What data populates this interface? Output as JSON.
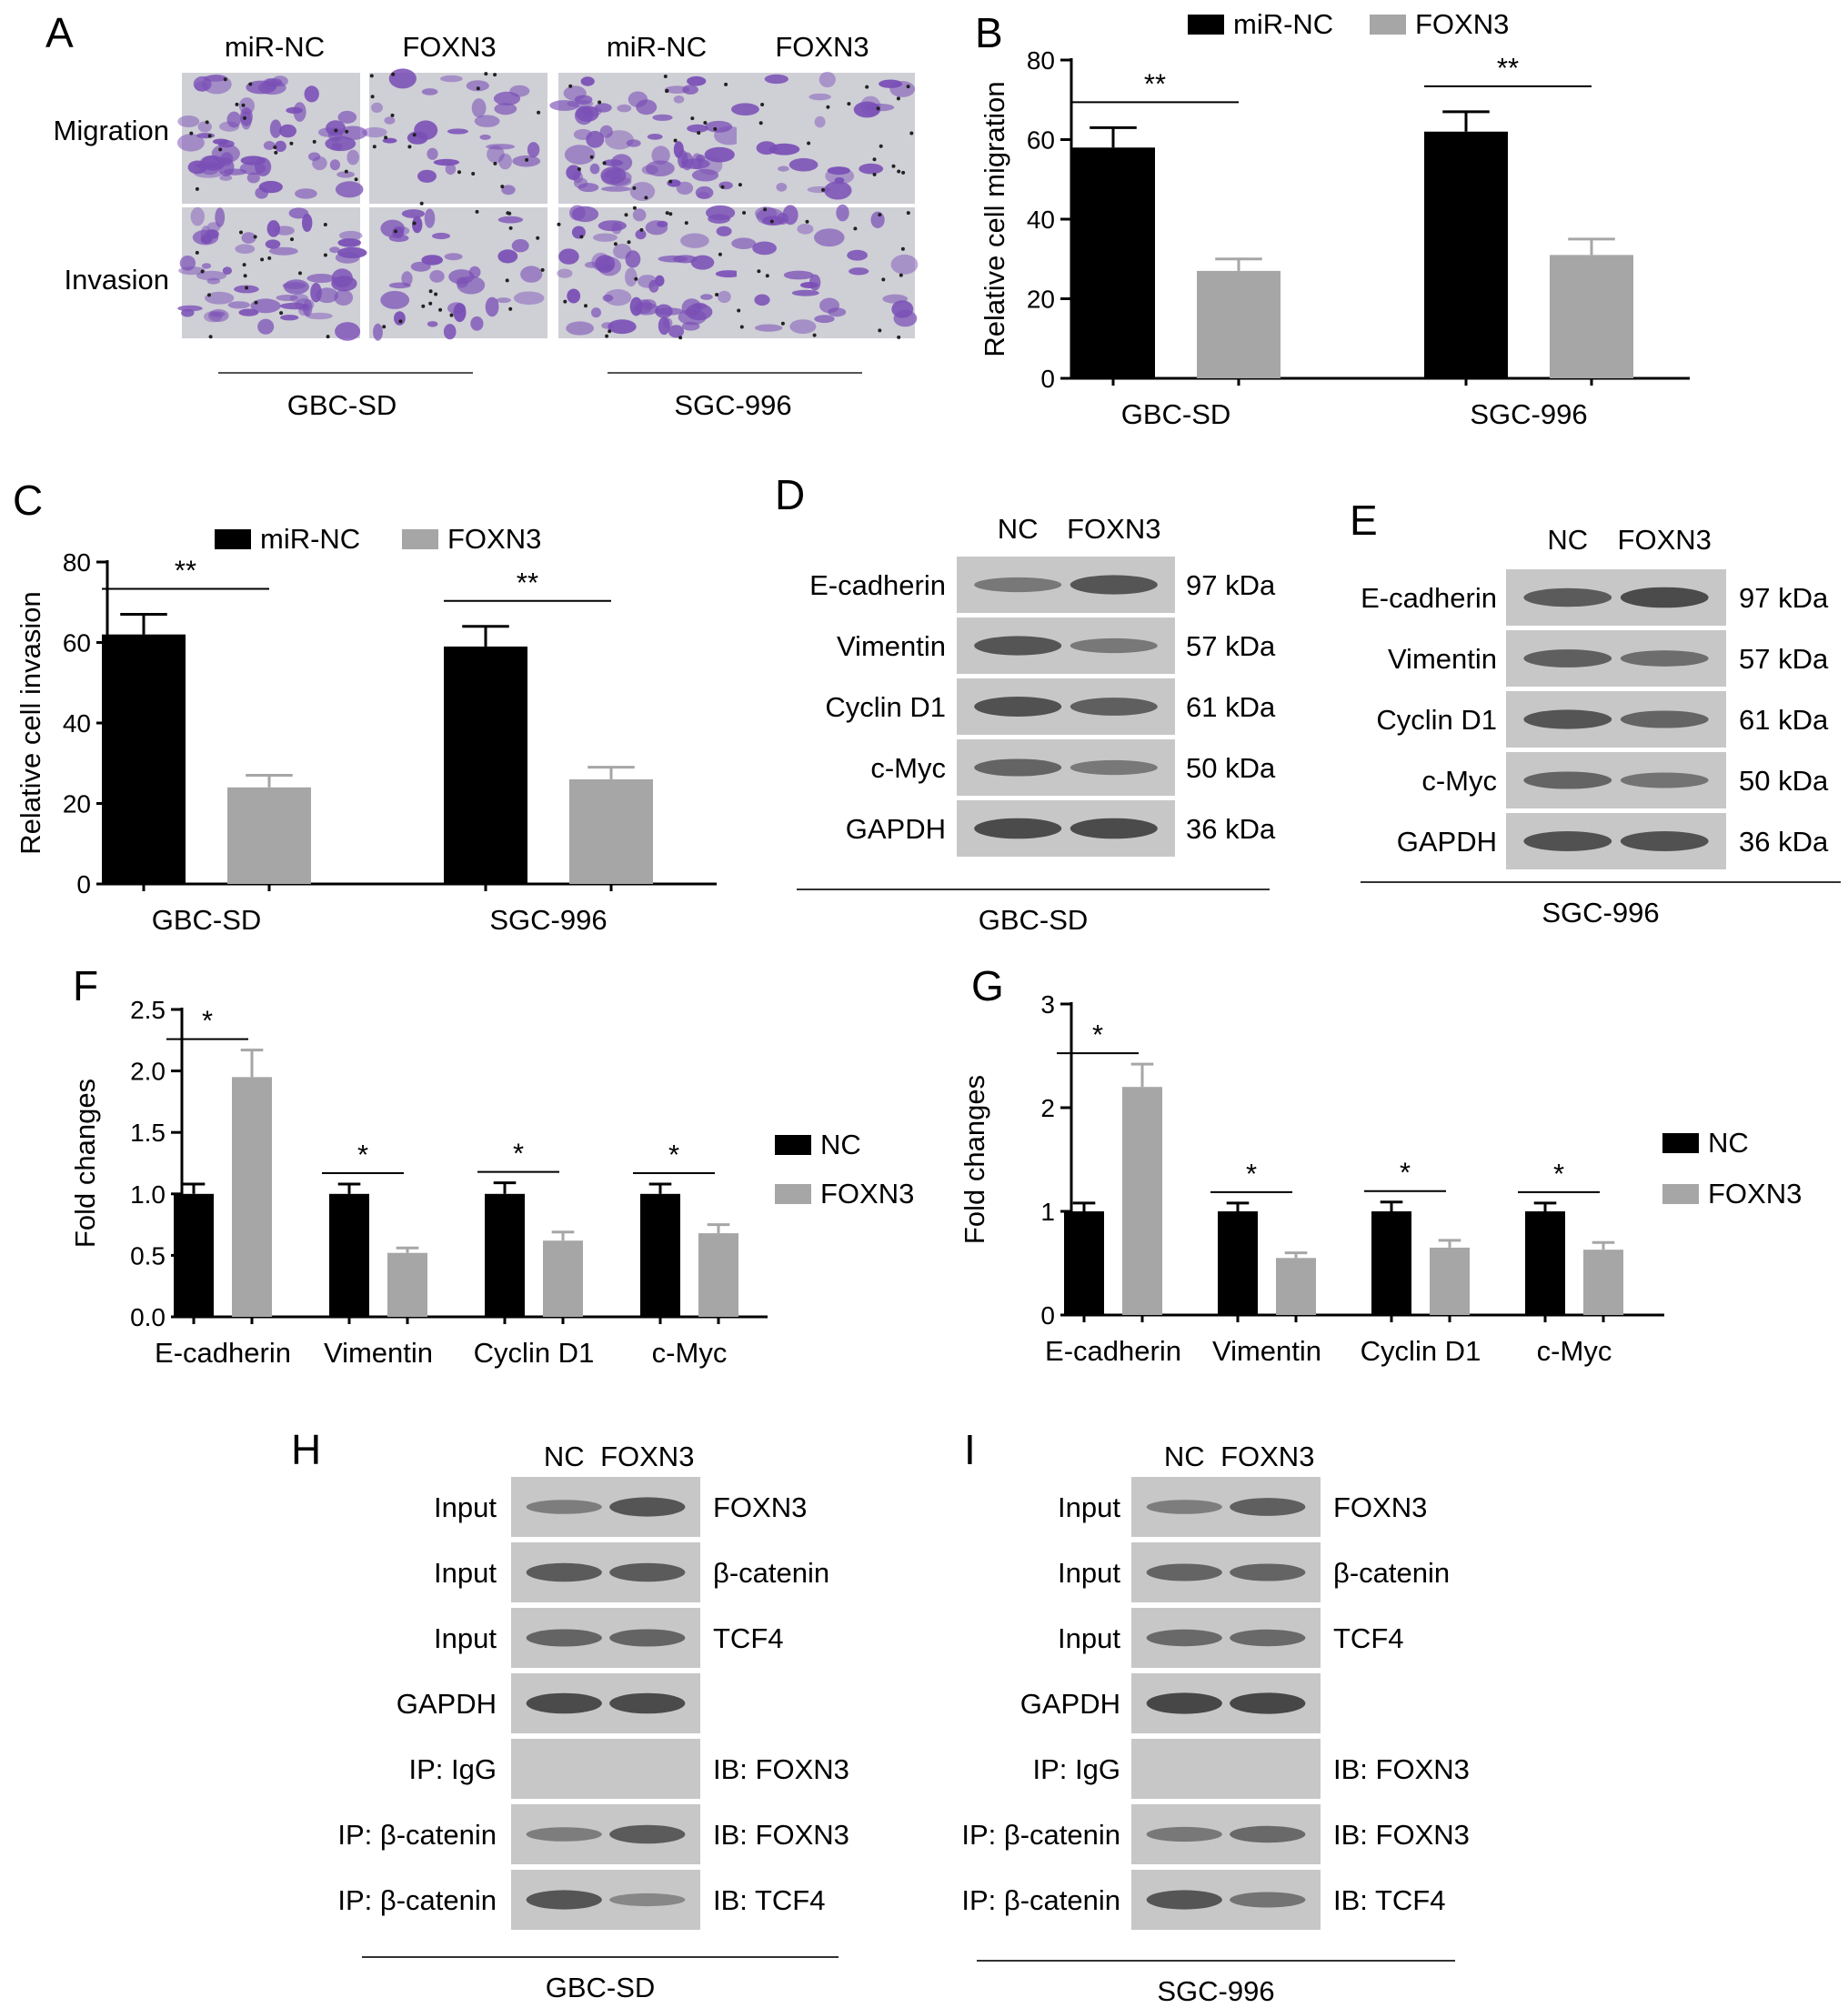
{
  "panel_letters": {
    "A": "A",
    "B": "B",
    "C": "C",
    "D": "D",
    "E": "E",
    "F": "F",
    "G": "G",
    "H": "H",
    "I": "I"
  },
  "colors": {
    "nc": "#000000",
    "foxn3": "#a6a6a6",
    "stain": "#7a4fb6",
    "stain_bg": "#cfcfd6",
    "blot_bg": "#c7c7c7",
    "band": "#3a3a3a"
  },
  "panelA": {
    "cols": [
      "miR-NC",
      "FOXN3",
      "miR-NC",
      "FOXN3"
    ],
    "rows": [
      "Migration",
      "Invasion"
    ],
    "groups": [
      "GBC-SD",
      "SGC-996"
    ]
  },
  "panelD": {
    "lanes": [
      "NC",
      "FOXN3"
    ],
    "proteins": [
      "E-cadherin",
      "Vimentin",
      "Cyclin D1",
      "c-Myc",
      "GAPDH"
    ],
    "sizes": [
      "97 kDa",
      "57 kDa",
      "61 kDa",
      "50 kDa",
      "36 kDa"
    ],
    "group": "GBC-SD",
    "intensity": [
      [
        0.45,
        0.8
      ],
      [
        0.8,
        0.45
      ],
      [
        0.85,
        0.7
      ],
      [
        0.65,
        0.45
      ],
      [
        0.9,
        0.9
      ]
    ]
  },
  "panelE": {
    "lanes": [
      "NC",
      "FOXN3"
    ],
    "proteins": [
      "E-cadherin",
      "Vimentin",
      "Cyclin D1",
      "c-Myc",
      "GAPDH"
    ],
    "sizes": [
      "97 kDa",
      "57 kDa",
      "61 kDa",
      "50 kDa",
      "36 kDa"
    ],
    "group": "SGC-996",
    "intensity": [
      [
        0.75,
        0.9
      ],
      [
        0.7,
        0.55
      ],
      [
        0.8,
        0.65
      ],
      [
        0.65,
        0.5
      ],
      [
        0.85,
        0.85
      ]
    ]
  },
  "panelH": {
    "lanes": [
      "NC",
      "FOXN3"
    ],
    "left_labels": [
      "Input",
      "Input",
      "Input",
      "GAPDH",
      "IP: IgG",
      "IP: β-catenin",
      "IP: β-catenin"
    ],
    "right_labels": [
      "FOXN3",
      "β-catenin",
      "TCF4",
      "",
      "IB: FOXN3",
      "IB: FOXN3",
      "IB: TCF4"
    ],
    "group": "GBC-SD",
    "intensity": [
      [
        0.4,
        0.8
      ],
      [
        0.75,
        0.75
      ],
      [
        0.65,
        0.65
      ],
      [
        0.9,
        0.9
      ],
      [
        0,
        0
      ],
      [
        0.4,
        0.75
      ],
      [
        0.8,
        0.3
      ]
    ]
  },
  "panelI": {
    "lanes": [
      "NC",
      "FOXN3"
    ],
    "left_labels": [
      "Input",
      "Input",
      "Input",
      "GAPDH",
      "IP: IgG",
      "IP: β-catenin",
      "IP: β-catenin"
    ],
    "right_labels": [
      "FOXN3",
      "β-catenin",
      "TCF4",
      "",
      "IB: FOXN3",
      "IB: FOXN3",
      "IB: TCF4"
    ],
    "group": "SGC-996",
    "intensity": [
      [
        0.4,
        0.7
      ],
      [
        0.65,
        0.65
      ],
      [
        0.6,
        0.6
      ],
      [
        0.95,
        0.95
      ],
      [
        0,
        0
      ],
      [
        0.45,
        0.6
      ],
      [
        0.8,
        0.5
      ]
    ]
  },
  "chart_data": [
    {
      "id": "B",
      "type": "bar",
      "categories": [
        "GBC-SD",
        "SGC-996"
      ],
      "series": [
        {
          "name": "miR-NC",
          "values": [
            58,
            62
          ],
          "errors": [
            5,
            5
          ]
        },
        {
          "name": "FOXN3",
          "values": [
            27,
            31
          ],
          "errors": [
            3,
            4
          ]
        }
      ],
      "ylabel": "Relative cell migration",
      "ylim": [
        0,
        80
      ],
      "yticks": [
        "0",
        "20",
        "40",
        "60",
        "80"
      ],
      "significance": [
        "**",
        "**"
      ],
      "legend": "top"
    },
    {
      "id": "C",
      "type": "bar",
      "categories": [
        "GBC-SD",
        "SGC-996"
      ],
      "series": [
        {
          "name": "miR-NC",
          "values": [
            62,
            59
          ],
          "errors": [
            5,
            5
          ]
        },
        {
          "name": "FOXN3",
          "values": [
            24,
            26
          ],
          "errors": [
            3,
            3
          ]
        }
      ],
      "ylabel": "Relative cell invasion",
      "ylim": [
        0,
        80
      ],
      "yticks": [
        "0",
        "20",
        "40",
        "60",
        "80"
      ],
      "significance": [
        "**",
        "**"
      ],
      "legend": "top"
    },
    {
      "id": "F",
      "type": "bar",
      "categories": [
        "E-cadherin",
        "Vimentin",
        "Cyclin D1",
        "c-Myc"
      ],
      "series": [
        {
          "name": "NC",
          "values": [
            1.0,
            1.0,
            1.0,
            1.0
          ],
          "errors": [
            0.08,
            0.08,
            0.09,
            0.08
          ]
        },
        {
          "name": "FOXN3",
          "values": [
            1.95,
            0.52,
            0.62,
            0.68
          ],
          "errors": [
            0.22,
            0.04,
            0.07,
            0.07
          ]
        }
      ],
      "ylabel": "Fold changes",
      "ylim": [
        0,
        2.5
      ],
      "yticks": [
        "0.0",
        "0.5",
        "1.0",
        "1.5",
        "2.0",
        "2.5"
      ],
      "significance": [
        "*",
        "*",
        "*",
        "*"
      ],
      "legend": "right"
    },
    {
      "id": "G",
      "type": "bar",
      "categories": [
        "E-cadherin",
        "Vimentin",
        "Cyclin D1",
        "c-Myc"
      ],
      "series": [
        {
          "name": "NC",
          "values": [
            1.0,
            1.0,
            1.0,
            1.0
          ],
          "errors": [
            0.08,
            0.08,
            0.09,
            0.08
          ]
        },
        {
          "name": "FOXN3",
          "values": [
            2.2,
            0.55,
            0.65,
            0.63
          ],
          "errors": [
            0.22,
            0.05,
            0.07,
            0.07
          ]
        }
      ],
      "ylabel": "Fold changes",
      "ylim": [
        0,
        3
      ],
      "yticks": [
        "0",
        "1",
        "2",
        "3"
      ],
      "significance": [
        "*",
        "*",
        "*",
        "*"
      ],
      "legend": "right"
    }
  ]
}
